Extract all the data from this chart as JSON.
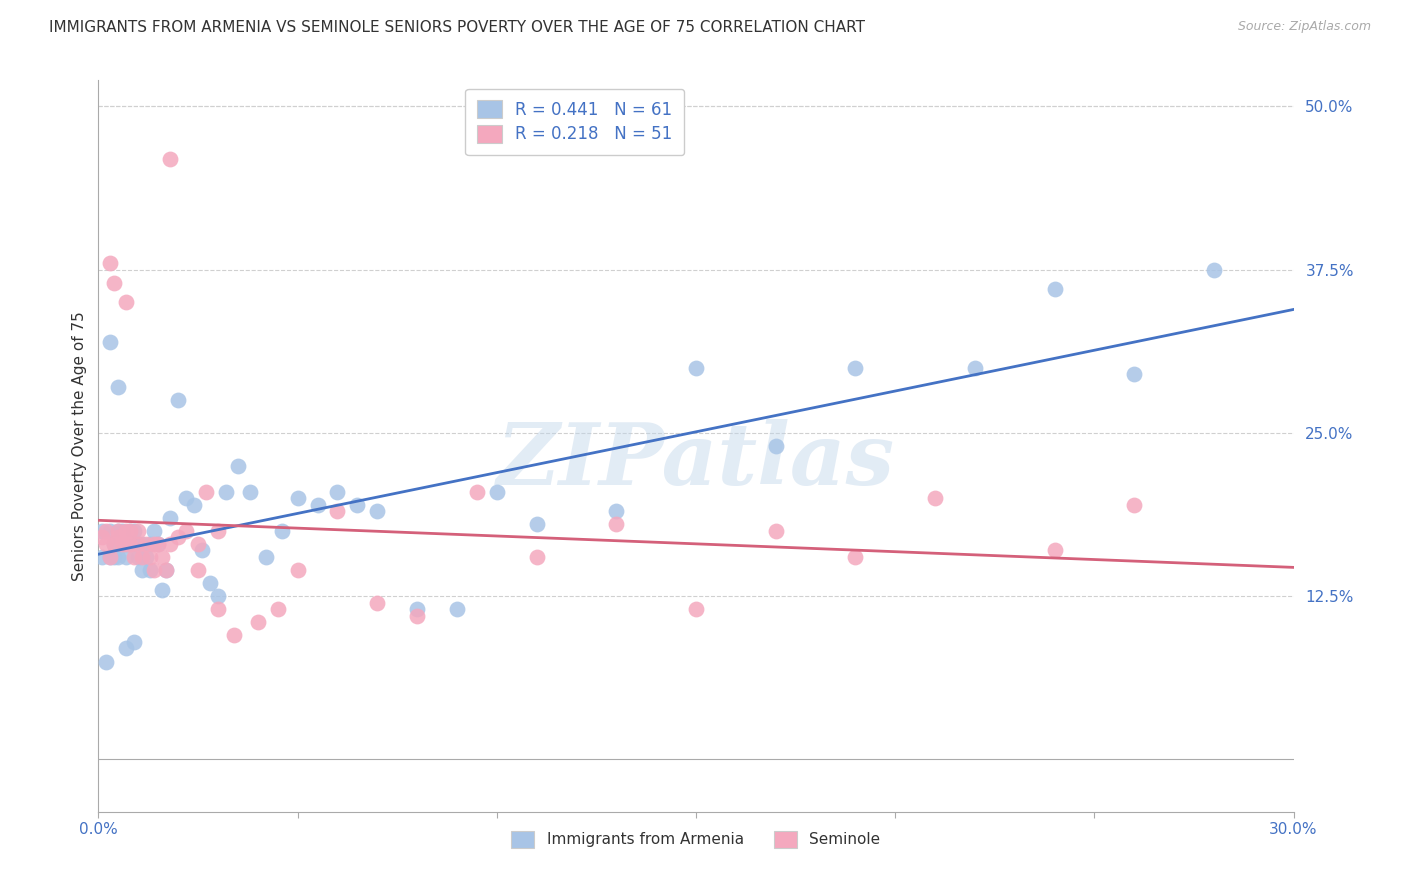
{
  "title": "IMMIGRANTS FROM ARMENIA VS SEMINOLE SENIORS POVERTY OVER THE AGE OF 75 CORRELATION CHART",
  "source": "Source: ZipAtlas.com",
  "ylabel": "Seniors Poverty Over the Age of 75",
  "xlim": [
    0.0,
    0.3
  ],
  "ylim": [
    -0.04,
    0.52
  ],
  "xticks": [
    0.0,
    0.05,
    0.1,
    0.15,
    0.2,
    0.25,
    0.3
  ],
  "yticks_right": [
    0.125,
    0.25,
    0.375,
    0.5
  ],
  "ytick_right_labels": [
    "12.5%",
    "25.0%",
    "37.5%",
    "50.0%"
  ],
  "blue_fill": "#a8c4e6",
  "pink_fill": "#f4a8be",
  "blue_line": "#4472c4",
  "pink_line": "#d4607a",
  "label_color": "#4472c4",
  "text_color": "#333333",
  "grid_color": "#d0d0d0",
  "legend_R1": "R = 0.441",
  "legend_N1": "N = 61",
  "legend_R2": "R = 0.218",
  "legend_N2": "N = 51",
  "legend_label1": "Immigrants from Armenia",
  "legend_label2": "Seminole",
  "watermark": "ZIPatlas",
  "blue_x": [
    0.001,
    0.001,
    0.002,
    0.003,
    0.003,
    0.004,
    0.004,
    0.005,
    0.005,
    0.006,
    0.006,
    0.007,
    0.007,
    0.008,
    0.008,
    0.009,
    0.009,
    0.01,
    0.01,
    0.011,
    0.011,
    0.012,
    0.013,
    0.013,
    0.014,
    0.015,
    0.016,
    0.017,
    0.018,
    0.02,
    0.022,
    0.024,
    0.026,
    0.028,
    0.03,
    0.032,
    0.035,
    0.038,
    0.042,
    0.046,
    0.05,
    0.055,
    0.06,
    0.065,
    0.07,
    0.08,
    0.09,
    0.1,
    0.11,
    0.13,
    0.15,
    0.17,
    0.19,
    0.22,
    0.24,
    0.26,
    0.28,
    0.003,
    0.005,
    0.007,
    0.009
  ],
  "blue_y": [
    0.175,
    0.155,
    0.075,
    0.155,
    0.175,
    0.155,
    0.165,
    0.155,
    0.175,
    0.17,
    0.175,
    0.165,
    0.155,
    0.175,
    0.165,
    0.165,
    0.175,
    0.155,
    0.165,
    0.165,
    0.145,
    0.155,
    0.165,
    0.145,
    0.175,
    0.165,
    0.13,
    0.145,
    0.185,
    0.275,
    0.2,
    0.195,
    0.16,
    0.135,
    0.125,
    0.205,
    0.225,
    0.205,
    0.155,
    0.175,
    0.2,
    0.195,
    0.205,
    0.195,
    0.19,
    0.115,
    0.115,
    0.205,
    0.18,
    0.19,
    0.3,
    0.24,
    0.3,
    0.3,
    0.36,
    0.295,
    0.375,
    0.32,
    0.285,
    0.085,
    0.09
  ],
  "pink_x": [
    0.001,
    0.002,
    0.002,
    0.003,
    0.004,
    0.005,
    0.005,
    0.006,
    0.007,
    0.007,
    0.008,
    0.008,
    0.009,
    0.01,
    0.011,
    0.012,
    0.013,
    0.014,
    0.015,
    0.016,
    0.017,
    0.018,
    0.02,
    0.022,
    0.025,
    0.027,
    0.03,
    0.034,
    0.04,
    0.045,
    0.05,
    0.06,
    0.07,
    0.08,
    0.095,
    0.11,
    0.13,
    0.15,
    0.17,
    0.19,
    0.21,
    0.24,
    0.26,
    0.003,
    0.004,
    0.007,
    0.01,
    0.014,
    0.018,
    0.025,
    0.03
  ],
  "pink_y": [
    0.17,
    0.165,
    0.175,
    0.155,
    0.165,
    0.17,
    0.175,
    0.165,
    0.165,
    0.175,
    0.165,
    0.175,
    0.155,
    0.165,
    0.155,
    0.165,
    0.155,
    0.145,
    0.165,
    0.155,
    0.145,
    0.165,
    0.17,
    0.175,
    0.165,
    0.205,
    0.175,
    0.095,
    0.105,
    0.115,
    0.145,
    0.19,
    0.12,
    0.11,
    0.205,
    0.155,
    0.18,
    0.115,
    0.175,
    0.155,
    0.2,
    0.16,
    0.195,
    0.38,
    0.365,
    0.35,
    0.175,
    0.165,
    0.46,
    0.145,
    0.115
  ]
}
